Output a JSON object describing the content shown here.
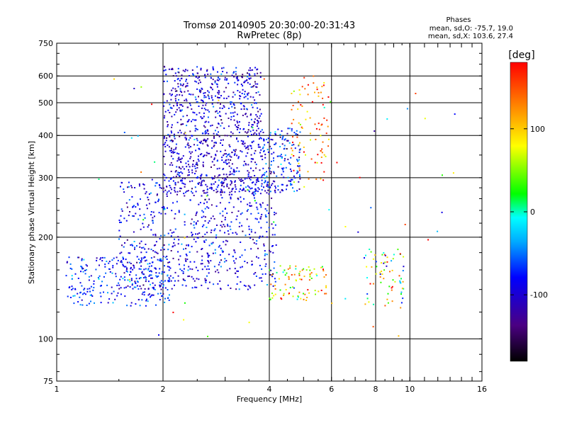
{
  "chart_data": {
    "type": "scatter",
    "title": "Tromsø 20140905 20:30:00-20:31:43",
    "subtitle": "RwPretec (8p)",
    "xlabel": "Frequency [MHz]",
    "ylabel": "Stationary phase Virtual Height [km]",
    "x_scale": "log",
    "y_scale": "log",
    "xlim": [
      1,
      16
    ],
    "ylim": [
      75,
      750
    ],
    "x_ticks": [
      1,
      2,
      4,
      6,
      8,
      10,
      16
    ],
    "y_ticks": [
      75,
      100,
      200,
      300,
      400,
      500,
      600,
      750
    ],
    "x_gridlines": [
      2,
      4,
      6,
      8,
      10
    ],
    "y_gridlines": [
      100,
      200,
      300,
      400,
      500,
      600
    ],
    "grid": true,
    "stats": {
      "header": "Phases",
      "line_o": "mean, sd,O: -75.7, 19.0",
      "line_x": "mean, sd,X: 103.6, 27.4"
    },
    "colorbar": {
      "label": "[deg]",
      "range": [
        -180,
        180
      ],
      "ticks": [
        100,
        0,
        -100
      ],
      "colors": [
        "#000000",
        "#4b0082",
        "#0000ff",
        "#00aaff",
        "#00ffff",
        "#00ff00",
        "#ffff00",
        "#ff8000",
        "#ff0000"
      ]
    },
    "series": [
      {
        "x_range": [
          2.0,
          3.8
        ],
        "y_range": [
          270,
          640
        ],
        "phase_mean": -100,
        "phase_sd": 25,
        "count": 900
      },
      {
        "x_range": [
          3.8,
          4.9
        ],
        "y_range": [
          270,
          420
        ],
        "phase_mean": -80,
        "phase_sd": 35,
        "count": 180
      },
      {
        "x_range": [
          4.6,
          5.9
        ],
        "y_range": [
          290,
          600
        ],
        "phase_mean": 130,
        "phase_sd": 40,
        "count": 90
      },
      {
        "x_range": [
          1.5,
          4.2
        ],
        "y_range": [
          140,
          300
        ],
        "phase_mean": -90,
        "phase_sd": 25,
        "count": 700
      },
      {
        "x_range": [
          1.05,
          2.1
        ],
        "y_range": [
          125,
          175
        ],
        "phase_mean": -75,
        "phase_sd": 25,
        "count": 260
      },
      {
        "x_range": [
          4.0,
          5.8
        ],
        "y_range": [
          130,
          165
        ],
        "phase_mean": 80,
        "phase_sd": 60,
        "count": 90
      },
      {
        "x_range": [
          7.4,
          9.6
        ],
        "y_range": [
          125,
          185
        ],
        "phase_mean": 60,
        "phase_sd": 80,
        "count": 70
      },
      {
        "x_range": [
          1.3,
          14.5
        ],
        "y_range": [
          100,
          650
        ],
        "phase_mean": 40,
        "phase_sd": 90,
        "count": 60
      }
    ]
  }
}
